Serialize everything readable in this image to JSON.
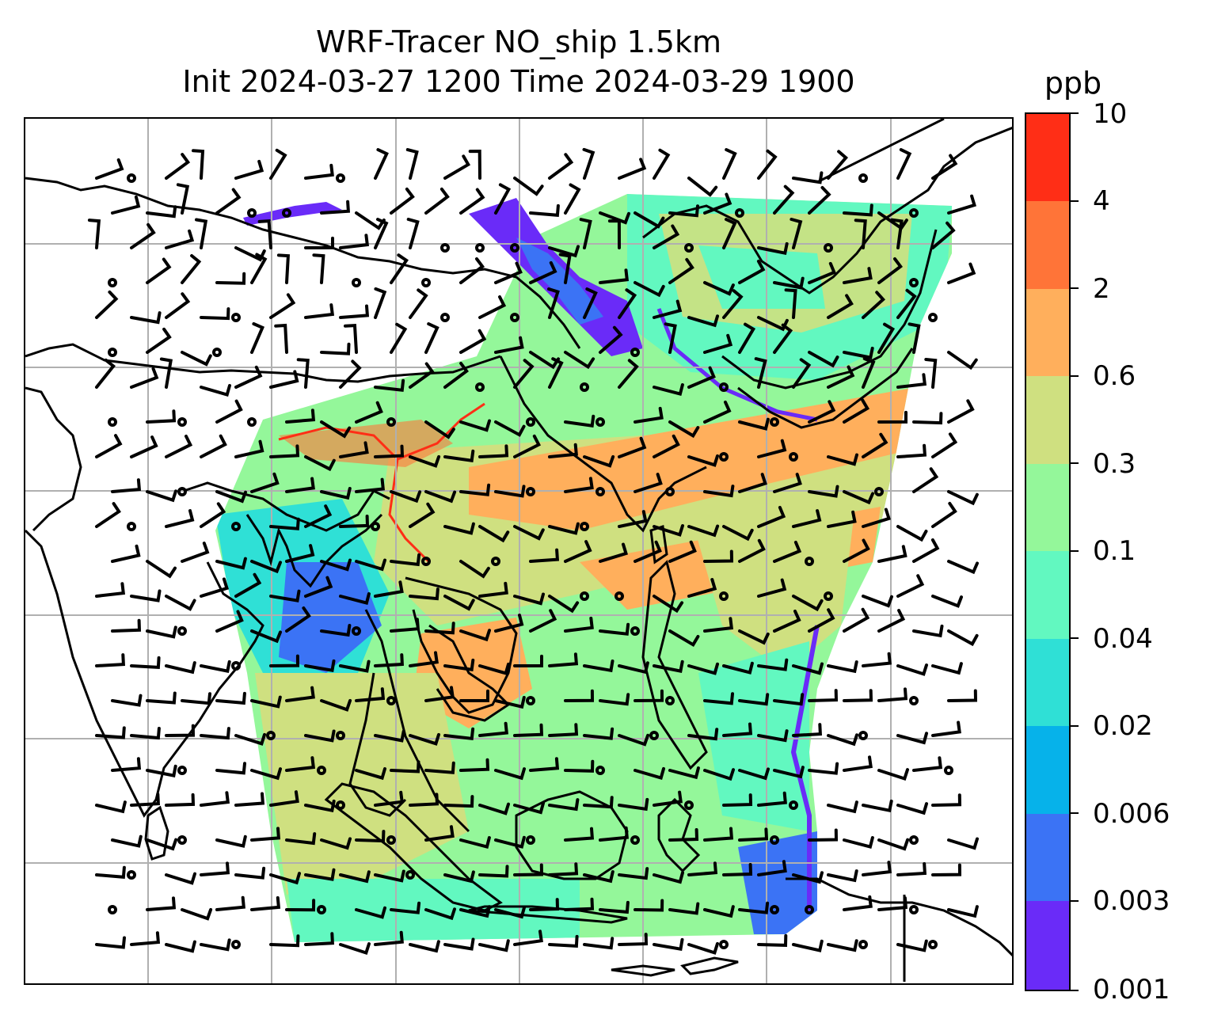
{
  "title": {
    "line1": "WRF-Tracer NO_ship 1.5km",
    "line2": "Init 2024-03-27 1200 Time 2024-03-29 1900"
  },
  "colorbar": {
    "unit": "ppb",
    "ticks": [
      "0.001",
      "0.003",
      "0.006",
      "0.02",
      "0.04",
      "0.1",
      "0.3",
      "0.6",
      "2",
      "4",
      "10"
    ],
    "colors": [
      "#6a2bf8",
      "#3b73f5",
      "#06b2ea",
      "#2fe0d6",
      "#62f8c0",
      "#94f79a",
      "#cfe080",
      "#ffaf5c",
      "#ff7438",
      "#ff2e16"
    ]
  },
  "map": {
    "region": "South and Southeast Asia",
    "gridlines": true,
    "features": [
      "coastlines",
      "country borders",
      "wind barbs",
      "tracer concentration fill"
    ]
  }
}
